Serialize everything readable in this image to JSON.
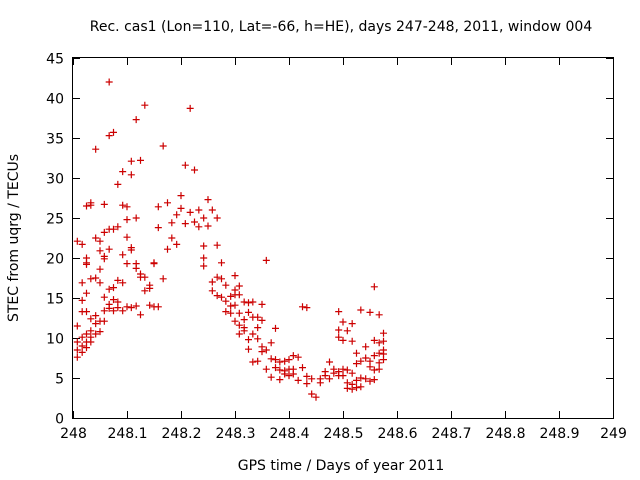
{
  "chart_data": {
    "type": "scatter",
    "title": "Rec. cas1 (Lon=110, Lat=-66, h=HE), days 247-248, 2011, window 004",
    "xlabel": "GPS time / Days of year 2011",
    "ylabel": "STEC from uqrg / TECUs",
    "xlim": [
      248,
      249
    ],
    "ylim": [
      0,
      45
    ],
    "grid": false,
    "legend": "none",
    "marker": "+",
    "color": "#cc0000",
    "xticks": [
      {
        "value": 248,
        "label": "248"
      },
      {
        "value": 248.1,
        "label": "248.1"
      },
      {
        "value": 248.2,
        "label": "248.2"
      },
      {
        "value": 248.3,
        "label": "248.3"
      },
      {
        "value": 248.4,
        "label": "248.4"
      },
      {
        "value": 248.5,
        "label": "248.5"
      },
      {
        "value": 248.6,
        "label": "248.6"
      },
      {
        "value": 248.7,
        "label": "248.7"
      },
      {
        "value": 248.8,
        "label": "248.8"
      },
      {
        "value": 248.9,
        "label": "248.9"
      },
      {
        "value": 249,
        "label": "249"
      }
    ],
    "yticks": [
      {
        "value": 0,
        "label": "0"
      },
      {
        "value": 5,
        "label": "5"
      },
      {
        "value": 10,
        "label": "10"
      },
      {
        "value": 15,
        "label": "15"
      },
      {
        "value": 20,
        "label": "20"
      },
      {
        "value": 25,
        "label": "25"
      },
      {
        "value": 30,
        "label": "30"
      },
      {
        "value": 35,
        "label": "35"
      },
      {
        "value": 40,
        "label": "40"
      },
      {
        "value": 45,
        "label": "45"
      }
    ],
    "series": [
      {
        "name": "STEC",
        "points": [
          [
            248.008,
            22.1
          ],
          [
            248.008,
            11.5
          ],
          [
            248.008,
            9.5
          ],
          [
            248.008,
            8.5
          ],
          [
            248.008,
            7.6
          ],
          [
            248.017,
            21.7
          ],
          [
            248.017,
            16.9
          ],
          [
            248.017,
            14.7
          ],
          [
            248.017,
            13.3
          ],
          [
            248.017,
            10.1
          ],
          [
            248.017,
            9.0
          ],
          [
            248.017,
            8.2
          ],
          [
            248.025,
            26.5
          ],
          [
            248.025,
            20.0
          ],
          [
            248.025,
            19.4
          ],
          [
            248.025,
            19.2
          ],
          [
            248.025,
            15.6
          ],
          [
            248.025,
            13.3
          ],
          [
            248.025,
            10.5
          ],
          [
            248.025,
            9.5
          ],
          [
            248.025,
            8.8
          ],
          [
            248.033,
            26.9
          ],
          [
            248.033,
            26.6
          ],
          [
            248.033,
            17.4
          ],
          [
            248.033,
            12.4
          ],
          [
            248.033,
            10.9
          ],
          [
            248.033,
            10.1
          ],
          [
            248.033,
            9.5
          ],
          [
            248.042,
            33.6
          ],
          [
            248.042,
            22.5
          ],
          [
            248.042,
            17.5
          ],
          [
            248.042,
            12.8
          ],
          [
            248.042,
            11.8
          ],
          [
            248.042,
            10.5
          ],
          [
            248.05,
            22.1
          ],
          [
            248.05,
            20.9
          ],
          [
            248.05,
            18.6
          ],
          [
            248.05,
            16.9
          ],
          [
            248.05,
            12.1
          ],
          [
            248.05,
            10.8
          ],
          [
            248.058,
            26.7
          ],
          [
            248.058,
            23.2
          ],
          [
            248.058,
            20.2
          ],
          [
            248.058,
            19.9
          ],
          [
            248.058,
            15.1
          ],
          [
            248.058,
            13.4
          ],
          [
            248.058,
            12.1
          ],
          [
            248.067,
            42.0
          ],
          [
            248.067,
            35.3
          ],
          [
            248.067,
            23.6
          ],
          [
            248.067,
            21.1
          ],
          [
            248.067,
            16.1
          ],
          [
            248.067,
            14.2
          ],
          [
            248.067,
            13.7
          ],
          [
            248.075,
            35.7
          ],
          [
            248.075,
            23.6
          ],
          [
            248.075,
            16.3
          ],
          [
            248.075,
            14.8
          ],
          [
            248.075,
            13.4
          ],
          [
            248.083,
            29.2
          ],
          [
            248.083,
            23.9
          ],
          [
            248.083,
            17.2
          ],
          [
            248.083,
            14.5
          ],
          [
            248.083,
            13.8
          ],
          [
            248.092,
            30.8
          ],
          [
            248.092,
            26.6
          ],
          [
            248.092,
            20.4
          ],
          [
            248.092,
            16.9
          ],
          [
            248.092,
            13.4
          ],
          [
            248.1,
            26.4
          ],
          [
            248.1,
            24.8
          ],
          [
            248.1,
            22.6
          ],
          [
            248.1,
            19.3
          ],
          [
            248.1,
            13.9
          ],
          [
            248.108,
            32.1
          ],
          [
            248.108,
            30.4
          ],
          [
            248.108,
            21.3
          ],
          [
            248.108,
            21.0
          ],
          [
            248.108,
            13.8
          ],
          [
            248.117,
            37.3
          ],
          [
            248.117,
            25.0
          ],
          [
            248.117,
            19.3
          ],
          [
            248.117,
            18.7
          ],
          [
            248.117,
            14.0
          ],
          [
            248.125,
            32.2
          ],
          [
            248.125,
            18.0
          ],
          [
            248.125,
            17.6
          ],
          [
            248.125,
            12.9
          ],
          [
            248.133,
            39.1
          ],
          [
            248.133,
            17.6
          ],
          [
            248.133,
            15.9
          ],
          [
            248.142,
            16.6
          ],
          [
            248.142,
            16.2
          ],
          [
            248.142,
            14.1
          ],
          [
            248.15,
            19.4
          ],
          [
            248.15,
            19.3
          ],
          [
            248.15,
            13.9
          ],
          [
            248.158,
            26.4
          ],
          [
            248.158,
            23.8
          ],
          [
            248.158,
            13.9
          ],
          [
            248.167,
            34.0
          ],
          [
            248.167,
            17.4
          ],
          [
            248.175,
            26.9
          ],
          [
            248.175,
            21.1
          ],
          [
            248.183,
            24.4
          ],
          [
            248.183,
            22.5
          ],
          [
            248.192,
            25.4
          ],
          [
            248.192,
            21.7
          ],
          [
            248.2,
            27.8
          ],
          [
            248.2,
            26.2
          ],
          [
            248.208,
            31.6
          ],
          [
            248.208,
            24.3
          ],
          [
            248.217,
            38.7
          ],
          [
            248.217,
            25.7
          ],
          [
            248.225,
            31.0
          ],
          [
            248.225,
            24.5
          ],
          [
            248.233,
            26.0
          ],
          [
            248.233,
            23.9
          ],
          [
            248.242,
            25.0
          ],
          [
            248.242,
            21.5
          ],
          [
            248.242,
            20.0
          ],
          [
            248.242,
            19.0
          ],
          [
            248.25,
            27.3
          ],
          [
            248.25,
            24.0
          ],
          [
            248.258,
            26.0
          ],
          [
            248.258,
            17.0
          ],
          [
            248.258,
            15.9
          ],
          [
            248.267,
            25.0
          ],
          [
            248.267,
            21.6
          ],
          [
            248.267,
            17.6
          ],
          [
            248.267,
            15.3
          ],
          [
            248.275,
            19.4
          ],
          [
            248.275,
            17.4
          ],
          [
            248.275,
            15.1
          ],
          [
            248.283,
            16.6
          ],
          [
            248.283,
            14.6
          ],
          [
            248.283,
            13.3
          ],
          [
            248.292,
            15.2
          ],
          [
            248.292,
            14.0
          ],
          [
            248.292,
            13.1
          ],
          [
            248.3,
            17.8
          ],
          [
            248.3,
            16.0
          ],
          [
            248.3,
            15.4
          ],
          [
            248.3,
            14.1
          ],
          [
            248.3,
            12.1
          ],
          [
            248.308,
            16.5
          ],
          [
            248.308,
            15.4
          ],
          [
            248.308,
            13.1
          ],
          [
            248.308,
            11.6
          ],
          [
            248.308,
            10.5
          ],
          [
            248.317,
            14.5
          ],
          [
            248.317,
            12.3
          ],
          [
            248.317,
            11.3
          ],
          [
            248.317,
            10.9
          ],
          [
            248.325,
            14.4
          ],
          [
            248.325,
            13.2
          ],
          [
            248.325,
            9.8
          ],
          [
            248.325,
            8.6
          ],
          [
            248.333,
            14.5
          ],
          [
            248.333,
            12.6
          ],
          [
            248.333,
            10.5
          ],
          [
            248.333,
            7.0
          ],
          [
            248.342,
            12.6
          ],
          [
            248.342,
            11.3
          ],
          [
            248.342,
            9.9
          ],
          [
            248.342,
            7.1
          ],
          [
            248.35,
            14.2
          ],
          [
            248.35,
            12.2
          ],
          [
            248.35,
            8.9
          ],
          [
            248.35,
            8.3
          ],
          [
            248.358,
            19.7
          ],
          [
            248.358,
            8.5
          ],
          [
            248.358,
            6.1
          ],
          [
            248.367,
            9.4
          ],
          [
            248.367,
            7.4
          ],
          [
            248.367,
            5.1
          ],
          [
            248.375,
            11.2
          ],
          [
            248.375,
            7.3
          ],
          [
            248.375,
            6.3
          ],
          [
            248.383,
            7.0
          ],
          [
            248.383,
            6.0
          ],
          [
            248.383,
            4.8
          ],
          [
            248.392,
            7.1
          ],
          [
            248.392,
            5.9
          ],
          [
            248.392,
            5.5
          ],
          [
            248.4,
            7.3
          ],
          [
            248.4,
            6.1
          ],
          [
            248.4,
            5.3
          ],
          [
            248.408,
            7.8
          ],
          [
            248.408,
            6.1
          ],
          [
            248.408,
            5.5
          ],
          [
            248.417,
            7.6
          ],
          [
            248.417,
            4.7
          ],
          [
            248.425,
            13.9
          ],
          [
            248.425,
            6.3
          ],
          [
            248.433,
            13.8
          ],
          [
            248.433,
            5.2
          ],
          [
            248.433,
            4.3
          ],
          [
            248.442,
            4.9
          ],
          [
            248.442,
            3.0
          ],
          [
            248.45,
            2.6
          ],
          [
            248.458,
            4.4
          ],
          [
            248.458,
            4.9
          ],
          [
            248.467,
            5.8
          ],
          [
            248.467,
            5.3
          ],
          [
            248.475,
            7.0
          ],
          [
            248.475,
            4.9
          ],
          [
            248.483,
            6.1
          ],
          [
            248.483,
            5.6
          ],
          [
            248.492,
            13.3
          ],
          [
            248.492,
            11.0
          ],
          [
            248.492,
            10.1
          ],
          [
            248.492,
            5.8
          ],
          [
            248.492,
            5.3
          ],
          [
            248.5,
            12.0
          ],
          [
            248.5,
            9.7
          ],
          [
            248.5,
            6.1
          ],
          [
            248.5,
            5.3
          ],
          [
            248.508,
            10.9
          ],
          [
            248.508,
            6.0
          ],
          [
            248.508,
            4.4
          ],
          [
            248.508,
            3.7
          ],
          [
            248.517,
            11.8
          ],
          [
            248.517,
            9.6
          ],
          [
            248.517,
            5.6
          ],
          [
            248.517,
            4.2
          ],
          [
            248.517,
            3.6
          ],
          [
            248.525,
            8.1
          ],
          [
            248.525,
            6.8
          ],
          [
            248.525,
            4.7
          ],
          [
            248.525,
            3.8
          ],
          [
            248.533,
            13.5
          ],
          [
            248.533,
            7.1
          ],
          [
            248.533,
            5.0
          ],
          [
            248.533,
            3.9
          ],
          [
            248.542,
            8.9
          ],
          [
            248.542,
            7.5
          ],
          [
            248.542,
            4.9
          ],
          [
            248.55,
            13.2
          ],
          [
            248.55,
            7.1
          ],
          [
            248.55,
            6.4
          ],
          [
            248.55,
            4.6
          ],
          [
            248.558,
            16.4
          ],
          [
            248.558,
            9.7
          ],
          [
            248.558,
            7.8
          ],
          [
            248.558,
            6.0
          ],
          [
            248.558,
            4.8
          ],
          [
            248.567,
            12.9
          ],
          [
            248.567,
            9.4
          ],
          [
            248.567,
            8.1
          ],
          [
            248.567,
            6.9
          ],
          [
            248.567,
            6.1
          ],
          [
            248.575,
            10.6
          ],
          [
            248.575,
            9.6
          ],
          [
            248.575,
            8.5
          ],
          [
            248.575,
            8.0
          ],
          [
            248.575,
            7.3
          ]
        ]
      }
    ]
  }
}
